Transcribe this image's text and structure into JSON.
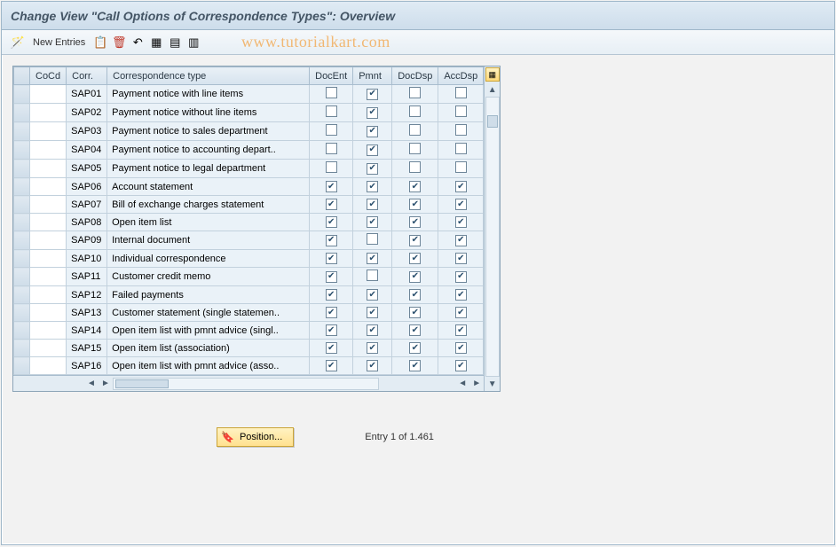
{
  "title": "Change View \"Call Options of Correspondence Types\": Overview",
  "toolbar": {
    "new_entries_label": "New Entries"
  },
  "watermark": "www.tutorialkart.com",
  "columns": {
    "cocd": "CoCd",
    "corr": "Corr.",
    "desc": "Correspondence type",
    "docent": "DocEnt",
    "pmnt": "Pmnt",
    "docdsp": "DocDsp",
    "accdsp": "AccDsp"
  },
  "rows": [
    {
      "corr": "SAP01",
      "desc": "Payment notice with line items",
      "docent": false,
      "pmnt": true,
      "docdsp": false,
      "accdsp": false
    },
    {
      "corr": "SAP02",
      "desc": "Payment notice without line items",
      "docent": false,
      "pmnt": true,
      "docdsp": false,
      "accdsp": false
    },
    {
      "corr": "SAP03",
      "desc": "Payment notice to sales department",
      "docent": false,
      "pmnt": true,
      "docdsp": false,
      "accdsp": false
    },
    {
      "corr": "SAP04",
      "desc": "Payment notice to accounting depart..",
      "docent": false,
      "pmnt": true,
      "docdsp": false,
      "accdsp": false
    },
    {
      "corr": "SAP05",
      "desc": "Payment notice to legal department",
      "docent": false,
      "pmnt": true,
      "docdsp": false,
      "accdsp": false
    },
    {
      "corr": "SAP06",
      "desc": "Account statement",
      "docent": true,
      "pmnt": true,
      "docdsp": true,
      "accdsp": true
    },
    {
      "corr": "SAP07",
      "desc": "Bill of exchange charges statement",
      "docent": true,
      "pmnt": true,
      "docdsp": true,
      "accdsp": true
    },
    {
      "corr": "SAP08",
      "desc": "Open item list",
      "docent": true,
      "pmnt": true,
      "docdsp": true,
      "accdsp": true
    },
    {
      "corr": "SAP09",
      "desc": "Internal document",
      "docent": true,
      "pmnt": false,
      "docdsp": true,
      "accdsp": true
    },
    {
      "corr": "SAP10",
      "desc": "Individual correspondence",
      "docent": true,
      "pmnt": true,
      "docdsp": true,
      "accdsp": true
    },
    {
      "corr": "SAP11",
      "desc": "Customer credit memo",
      "docent": true,
      "pmnt": false,
      "docdsp": true,
      "accdsp": true
    },
    {
      "corr": "SAP12",
      "desc": "Failed payments",
      "docent": true,
      "pmnt": true,
      "docdsp": true,
      "accdsp": true
    },
    {
      "corr": "SAP13",
      "desc": "Customer statement (single statemen..",
      "docent": true,
      "pmnt": true,
      "docdsp": true,
      "accdsp": true
    },
    {
      "corr": "SAP14",
      "desc": "Open item list with pmnt advice (singl..",
      "docent": true,
      "pmnt": true,
      "docdsp": true,
      "accdsp": true
    },
    {
      "corr": "SAP15",
      "desc": "Open item list (association)",
      "docent": true,
      "pmnt": true,
      "docdsp": true,
      "accdsp": true
    },
    {
      "corr": "SAP16",
      "desc": "Open item list with pmnt advice (asso..",
      "docent": true,
      "pmnt": true,
      "docdsp": true,
      "accdsp": true
    }
  ],
  "footer": {
    "position_label": "Position...",
    "entry_text": "Entry 1 of 1.461"
  },
  "colors": {
    "header_grad_top": "#e0ebf4",
    "header_grad_bot": "#cdddeb",
    "cell_bg": "#eaf2f8",
    "border": "#a9bdce",
    "accent": "#f58808"
  }
}
